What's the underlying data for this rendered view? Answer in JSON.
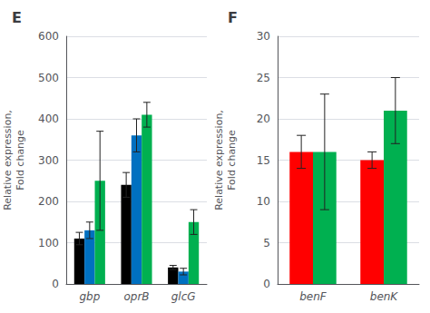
{
  "chart_data": [
    {
      "type": "bar",
      "title": "E",
      "categories": [
        "gbp",
        "oprB",
        "glcG"
      ],
      "series": [
        {
          "color": "#000000",
          "values": [
            110,
            240,
            40
          ],
          "errors": [
            15,
            30,
            5
          ]
        },
        {
          "color": "#0070C0",
          "values": [
            130,
            360,
            30
          ],
          "errors": [
            20,
            40,
            8
          ]
        },
        {
          "color": "#00B050",
          "values": [
            250,
            410,
            150
          ],
          "errors": [
            120,
            30,
            30
          ]
        }
      ],
      "ylabel": "Relative expression,\nFold change",
      "ylim": [
        0,
        600
      ],
      "yticks": [
        0,
        100,
        200,
        300,
        400,
        500,
        600
      ],
      "grid": true
    },
    {
      "type": "bar",
      "title": "F",
      "categories": [
        "benF",
        "benK"
      ],
      "series": [
        {
          "color": "#FF0000",
          "values": [
            16,
            15
          ],
          "errors": [
            2,
            1
          ]
        },
        {
          "color": "#00B050",
          "values": [
            16,
            21
          ],
          "errors": [
            7,
            4
          ]
        }
      ],
      "ylabel": "Relative expression,\nFold change",
      "ylim": [
        0,
        30
      ],
      "yticks": [
        0,
        5,
        10,
        15,
        20,
        25,
        30
      ],
      "grid": true
    }
  ]
}
